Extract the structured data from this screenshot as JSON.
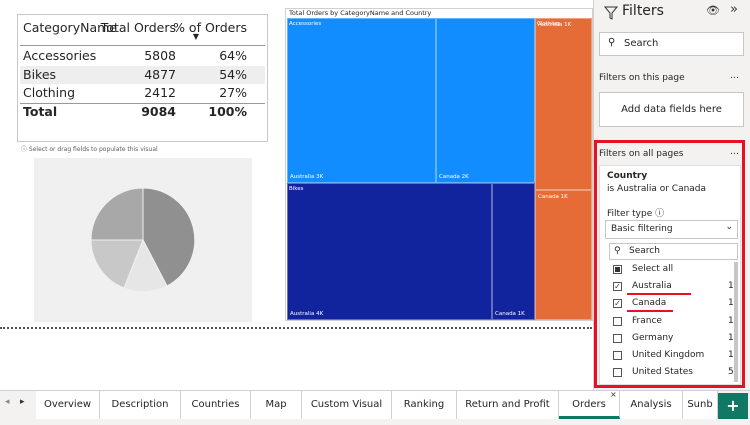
{
  "table": {
    "headers": [
      "CategoryName",
      "Total Orders",
      "% of Orders"
    ],
    "rows": [
      [
        "Accessories",
        5808,
        "64%"
      ],
      [
        "Bikes",
        4877,
        "54%"
      ],
      [
        "Clothing",
        2412,
        "27%"
      ]
    ],
    "total": [
      "Total",
      9084,
      "100%"
    ]
  },
  "hint": "Select or drag fields to populate this visual",
  "treemap": {
    "title": "Total Orders by CategoryName and Country",
    "groups": [
      {
        "name": "Accessories",
        "color": "#118dff",
        "cells": [
          "Australia 3K",
          "Canada 2K"
        ]
      },
      {
        "name": "Bikes",
        "color": "#12239e",
        "cells": [
          "Australia 4K",
          "Canada 1K"
        ]
      },
      {
        "name": "Clothing",
        "color": "#e66c37",
        "cells": [
          "Australia 1K",
          "Canada 1K"
        ]
      }
    ]
  },
  "filters": {
    "title": "Filters",
    "search": "Search",
    "page_section": "Filters on this page",
    "add_fields": "Add data fields here",
    "all_section": "Filters on all pages",
    "card": {
      "field": "Country",
      "summary": "is Australia or Canada",
      "filter_type_label": "Filter type",
      "filter_type": "Basic filtering",
      "search": "Search",
      "items": [
        {
          "label": "Select all",
          "state": "partial"
        },
        {
          "label": "Australia",
          "count": 1,
          "state": "checked"
        },
        {
          "label": "Canada",
          "count": 1,
          "state": "checked"
        },
        {
          "label": "France",
          "count": 1,
          "state": "unchecked"
        },
        {
          "label": "Germany",
          "count": 1,
          "state": "unchecked"
        },
        {
          "label": "United Kingdom",
          "count": 1,
          "state": "unchecked"
        },
        {
          "label": "United States",
          "count": 5,
          "state": "unchecked"
        }
      ]
    }
  },
  "tabs": [
    "Overview",
    "Description",
    "Countries",
    "Map",
    "Custom Visual",
    "Ranking",
    "Return and Profit",
    "Orders",
    "Analysis",
    "Sunb"
  ],
  "active_tab": 7
}
